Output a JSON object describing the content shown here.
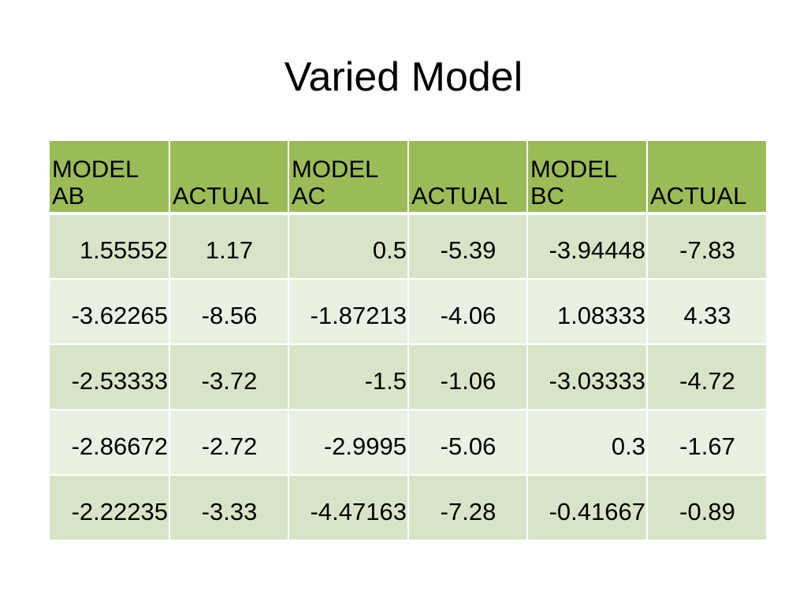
{
  "slide": {
    "title": "Varied Model"
  },
  "table": {
    "headers": [
      "MODEL AB",
      "ACTUAL",
      "MODEL AC",
      "ACTUAL",
      "MODEL BC",
      "ACTUAL"
    ],
    "rows": [
      [
        "1.55552",
        "1.17",
        "0.5",
        "-5.39",
        "-3.94448",
        "-7.83"
      ],
      [
        "-3.62265",
        "-8.56",
        "-1.87213",
        "-4.06",
        "1.08333",
        "4.33"
      ],
      [
        "-2.53333",
        "-3.72",
        "-1.5",
        "-1.06",
        "-3.03333",
        "-4.72"
      ],
      [
        "-2.86672",
        "-2.72",
        "-2.9995",
        "-5.06",
        "0.3",
        "-1.67"
      ],
      [
        "-2.22235",
        "-3.33",
        "-4.47163",
        "-7.28",
        "-0.41667",
        "-0.89"
      ]
    ]
  },
  "colors": {
    "header_fill": "#9bbb59",
    "band_dark": "#d8e4c8",
    "band_light": "#eaf1e3"
  }
}
